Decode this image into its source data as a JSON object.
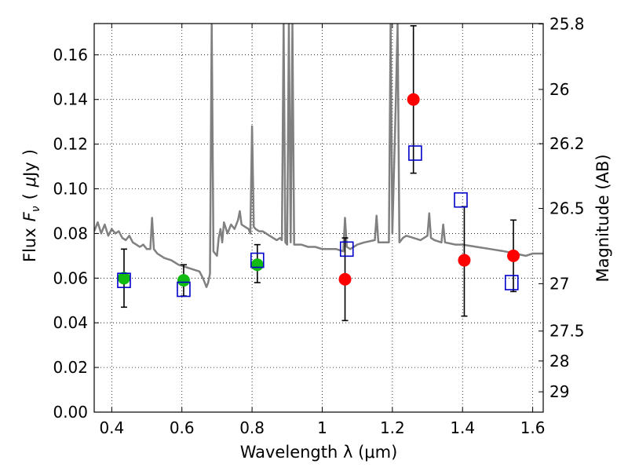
{
  "chart_data": {
    "type": "scatter",
    "xlabel": "Wavelength  λ (μm)",
    "ylabel_left": "Flux  F_ν  ( μJy )",
    "ylabel_left_parts": {
      "flux": "Flux",
      "sym": "F",
      "sub": "ν",
      "open": "(",
      "mu": "μ",
      "unit": "Jy",
      "close": ")"
    },
    "ylabel_right": "Magnitude (AB)",
    "xlim": [
      0.35,
      1.63
    ],
    "ylim": [
      0.0,
      0.174
    ],
    "grid": true,
    "x_ticks": [
      {
        "value": 0.4,
        "label": "0.4"
      },
      {
        "value": 0.6,
        "label": "0.6"
      },
      {
        "value": 0.8,
        "label": "0.8"
      },
      {
        "value": 1.0,
        "label": "1"
      },
      {
        "value": 1.2,
        "label": "1.2"
      },
      {
        "value": 1.4,
        "label": "1.4"
      },
      {
        "value": 1.6,
        "label": "1.6"
      }
    ],
    "y_ticks": [
      {
        "value": 0.0,
        "label": "0.00"
      },
      {
        "value": 0.02,
        "label": "0.02"
      },
      {
        "value": 0.04,
        "label": "0.04"
      },
      {
        "value": 0.06,
        "label": "0.06"
      },
      {
        "value": 0.08,
        "label": "0.08"
      },
      {
        "value": 0.1,
        "label": "0.10"
      },
      {
        "value": 0.12,
        "label": "0.12"
      },
      {
        "value": 0.14,
        "label": "0.14"
      },
      {
        "value": 0.16,
        "label": "0.16"
      }
    ],
    "mag_ticks": [
      {
        "flux": 0.1738,
        "label": "25.8"
      },
      {
        "flux": 0.1445,
        "label": "26"
      },
      {
        "flux": 0.1202,
        "label": "26.2"
      },
      {
        "flux": 0.0912,
        "label": "26.5"
      },
      {
        "flux": 0.0575,
        "label": "27"
      },
      {
        "flux": 0.0363,
        "label": "27.5"
      },
      {
        "flux": 0.0229,
        "label": "28"
      },
      {
        "flux": 0.0091,
        "label": "29"
      }
    ],
    "colors": {
      "sed": "#808080",
      "green_points": "#11bb11",
      "red_points": "#ff0000",
      "model_squares": "#0000cc",
      "error_bars": "#000000"
    },
    "series": [
      {
        "kind": "sed_model_line",
        "points": [
          [
            0.35,
            0.081
          ],
          [
            0.36,
            0.085
          ],
          [
            0.37,
            0.08
          ],
          [
            0.38,
            0.084
          ],
          [
            0.39,
            0.079
          ],
          [
            0.4,
            0.082
          ],
          [
            0.41,
            0.08
          ],
          [
            0.42,
            0.081
          ],
          [
            0.43,
            0.078
          ],
          [
            0.44,
            0.077
          ],
          [
            0.45,
            0.079
          ],
          [
            0.46,
            0.076
          ],
          [
            0.47,
            0.075
          ],
          [
            0.48,
            0.074
          ],
          [
            0.49,
            0.075
          ],
          [
            0.5,
            0.073
          ],
          [
            0.51,
            0.073
          ],
          [
            0.515,
            0.087
          ],
          [
            0.52,
            0.073
          ],
          [
            0.53,
            0.071
          ],
          [
            0.55,
            0.069
          ],
          [
            0.57,
            0.068
          ],
          [
            0.59,
            0.066
          ],
          [
            0.61,
            0.065
          ],
          [
            0.63,
            0.064
          ],
          [
            0.65,
            0.063
          ],
          [
            0.66,
            0.06
          ],
          [
            0.67,
            0.056
          ],
          [
            0.675,
            0.058
          ],
          [
            0.68,
            0.062
          ],
          [
            0.685,
            0.174
          ],
          [
            0.69,
            0.072
          ],
          [
            0.7,
            0.07
          ],
          [
            0.705,
            0.078
          ],
          [
            0.71,
            0.082
          ],
          [
            0.715,
            0.076
          ],
          [
            0.72,
            0.085
          ],
          [
            0.73,
            0.08
          ],
          [
            0.74,
            0.084
          ],
          [
            0.75,
            0.082
          ],
          [
            0.76,
            0.086
          ],
          [
            0.765,
            0.09
          ],
          [
            0.77,
            0.084
          ],
          [
            0.78,
            0.083
          ],
          [
            0.79,
            0.082
          ],
          [
            0.795,
            0.08
          ],
          [
            0.8,
            0.128
          ],
          [
            0.805,
            0.083
          ],
          [
            0.81,
            0.082
          ],
          [
            0.82,
            0.081
          ],
          [
            0.83,
            0.081
          ],
          [
            0.84,
            0.08
          ],
          [
            0.85,
            0.079
          ],
          [
            0.86,
            0.078
          ],
          [
            0.87,
            0.077
          ],
          [
            0.88,
            0.078
          ],
          [
            0.885,
            0.077
          ],
          [
            0.89,
            0.174
          ],
          [
            0.895,
            0.076
          ],
          [
            0.9,
            0.075
          ],
          [
            0.905,
            0.174
          ],
          [
            0.91,
            0.076
          ],
          [
            0.915,
            0.174
          ],
          [
            0.92,
            0.075
          ],
          [
            0.94,
            0.075
          ],
          [
            0.96,
            0.074
          ],
          [
            0.98,
            0.074
          ],
          [
            1.0,
            0.073
          ],
          [
            1.02,
            0.073
          ],
          [
            1.04,
            0.073
          ],
          [
            1.06,
            0.072
          ],
          [
            1.065,
            0.087
          ],
          [
            1.07,
            0.074
          ],
          [
            1.08,
            0.073
          ],
          [
            1.1,
            0.075
          ],
          [
            1.12,
            0.076
          ],
          [
            1.15,
            0.077
          ],
          [
            1.155,
            0.088
          ],
          [
            1.16,
            0.076
          ],
          [
            1.18,
            0.076
          ],
          [
            1.19,
            0.076
          ],
          [
            1.195,
            0.174
          ],
          [
            1.2,
            0.08
          ],
          [
            1.21,
            0.14
          ],
          [
            1.215,
            0.174
          ],
          [
            1.22,
            0.076
          ],
          [
            1.23,
            0.078
          ],
          [
            1.24,
            0.079
          ],
          [
            1.26,
            0.078
          ],
          [
            1.28,
            0.077
          ],
          [
            1.3,
            0.079
          ],
          [
            1.305,
            0.089
          ],
          [
            1.31,
            0.078
          ],
          [
            1.32,
            0.077
          ],
          [
            1.34,
            0.076
          ],
          [
            1.345,
            0.084
          ],
          [
            1.35,
            0.076
          ],
          [
            1.38,
            0.075
          ],
          [
            1.4,
            0.075
          ],
          [
            1.44,
            0.074
          ],
          [
            1.48,
            0.073
          ],
          [
            1.52,
            0.072
          ],
          [
            1.55,
            0.071
          ],
          [
            1.58,
            0.07
          ],
          [
            1.6,
            0.071
          ],
          [
            1.63,
            0.071
          ]
        ]
      },
      {
        "kind": "observed_green",
        "points": [
          {
            "x": 0.435,
            "y": 0.06,
            "err_lo": 0.047,
            "err_hi": 0.073
          },
          {
            "x": 0.605,
            "y": 0.059,
            "err_lo": 0.052,
            "err_hi": 0.066
          },
          {
            "x": 0.815,
            "y": 0.066,
            "err_lo": 0.058,
            "err_hi": 0.075
          }
        ]
      },
      {
        "kind": "observed_red",
        "points": [
          {
            "x": 1.065,
            "y": 0.0595,
            "err_lo": 0.041,
            "err_hi": 0.078
          },
          {
            "x": 1.26,
            "y": 0.14,
            "err_lo": 0.107,
            "err_hi": 0.173
          },
          {
            "x": 1.405,
            "y": 0.068,
            "err_lo": 0.043,
            "err_hi": 0.092
          },
          {
            "x": 1.545,
            "y": 0.07,
            "err_lo": 0.054,
            "err_hi": 0.086
          }
        ]
      },
      {
        "kind": "model_photometry_squares",
        "points": [
          {
            "x": 0.435,
            "y": 0.059
          },
          {
            "x": 0.605,
            "y": 0.055
          },
          {
            "x": 0.815,
            "y": 0.068
          },
          {
            "x": 1.07,
            "y": 0.073
          },
          {
            "x": 1.265,
            "y": 0.116
          },
          {
            "x": 1.395,
            "y": 0.095
          },
          {
            "x": 1.54,
            "y": 0.058
          }
        ]
      }
    ]
  }
}
